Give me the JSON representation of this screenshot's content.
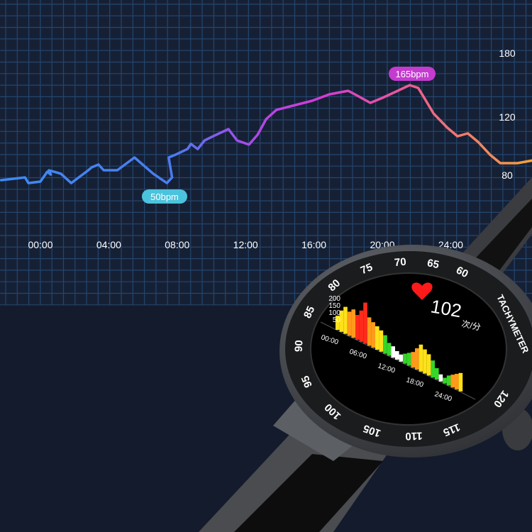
{
  "chart_data": {
    "type": "line",
    "x_tick_labels": [
      "00:00",
      "04:00",
      "08:00",
      "12:00",
      "16:00",
      "20:00",
      "24:00"
    ],
    "x_ticks_hours": [
      0,
      4,
      8,
      12,
      16,
      20,
      24
    ],
    "y_tick_labels": [
      "180",
      "120",
      "80"
    ],
    "y_ticks": [
      180,
      120,
      80
    ],
    "grid": true,
    "line_gradient": [
      "#3d8bf2",
      "#4a7cf0",
      "#a24ee8",
      "#d23ad6",
      "#ef5f8e",
      "#f5a23a"
    ],
    "series": [
      {
        "x_hours": [
          -2.3,
          -0.9,
          -0.7,
          0,
          0.4,
          0.6,
          0.5,
          1.2,
          1.8,
          2.8,
          3.0,
          3.4,
          3.7,
          4.5,
          5.5,
          6.6,
          7.4,
          7.7,
          7.5,
          7.9,
          8.6,
          8.8,
          9.2,
          9.6,
          10.1,
          11,
          11.5,
          12.2,
          12.7,
          13.2,
          13.8,
          14.6,
          15.9,
          16.9,
          18,
          18.4,
          19.3,
          20,
          20.9,
          21.6,
          22.1,
          22.5,
          23,
          23.8,
          24.4,
          25,
          25.6,
          26.3,
          26.9,
          27.9,
          28.8
        ],
        "bpm": [
          76.6,
          78.5,
          74.6,
          75.6,
          82.4,
          80.5,
          83.4,
          81,
          74.6,
          83.4,
          85.4,
          87.3,
          83.4,
          83.4,
          92.2,
          81,
          74.6,
          78.5,
          92.2,
          94.1,
          98,
          101.5,
          98,
          103.9,
          106.8,
          111.7,
          103.9,
          101,
          107.8,
          118.5,
          126.7,
          130,
          135.3,
          141.3,
          144.7,
          141.3,
          133.3,
          138,
          144.7,
          150,
          147.3,
          136.7,
          123.3,
          112.7,
          106.8,
          108.8,
          102.9,
          94.1,
          88.3,
          88.3,
          90.2
        ]
      }
    ],
    "annotations": [
      {
        "text": "50bpm",
        "color": "#4cc3dc"
      },
      {
        "text": "165bpm",
        "color": "#c43bd0"
      }
    ]
  },
  "watch": {
    "heart_rate": "102",
    "unit": "次/分",
    "tachymeter_label": "TACHYMETER",
    "bezel_numbers": [
      "60",
      "65",
      "70",
      "75",
      "80",
      "85",
      "90",
      "95",
      "100",
      "105",
      "110",
      "115",
      "120"
    ],
    "face_chart": {
      "y_tick_labels": [
        "200",
        "150",
        "100",
        "50"
      ],
      "x_tick_labels": [
        "00:00",
        "06:00",
        "12:00",
        "18:00",
        "24:00"
      ],
      "bar_colors": [
        "#ffe11a",
        "#ff9a1a",
        "#ff2a1a",
        "#36d62a",
        "#ffffff"
      ]
    }
  }
}
